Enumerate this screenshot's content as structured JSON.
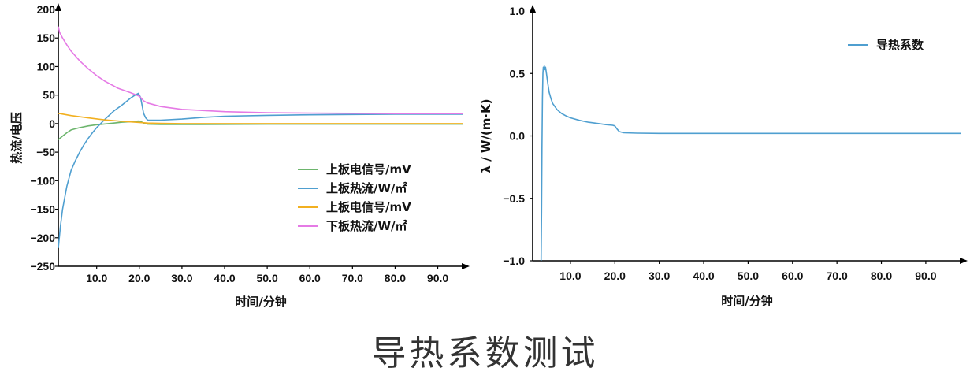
{
  "caption": "导热系数测试",
  "chart_data": [
    {
      "type": "line",
      "xlabel": "时间/分钟",
      "ylabel": "热流/电压",
      "xlim": [
        1.0,
        96.0
      ],
      "ylim": [
        -250,
        200
      ],
      "xticks": [
        10,
        20,
        30,
        40,
        50,
        60,
        70,
        80,
        90
      ],
      "xtick_labels": [
        "10.0",
        "20.0",
        "30.0",
        "40.0",
        "50.0",
        "60.0",
        "70.0",
        "80.0",
        "90.0"
      ],
      "yticks": [
        200,
        150,
        100,
        50,
        0,
        -50,
        -100,
        -150,
        -200,
        -250
      ],
      "ytick_labels": [
        "200",
        "150",
        "100",
        "50",
        "0",
        "−50",
        "−100",
        "−150",
        "−200",
        "−250"
      ],
      "legend_position": "lower-right",
      "series": [
        {
          "name": "上板电信号/mV",
          "color": "#6db56d",
          "x": [
            1,
            2,
            3,
            4,
            5,
            6,
            8,
            10,
            12,
            14,
            16,
            18,
            20,
            20.5,
            21,
            22,
            25,
            30,
            40,
            50,
            60,
            70,
            80,
            90,
            96
          ],
          "y": [
            -28,
            -22,
            -16,
            -11,
            -9,
            -7,
            -4,
            -2,
            -0.5,
            1,
            2.5,
            3.5,
            4.5,
            3,
            1,
            -1,
            -1.5,
            -1.5,
            -1.2,
            -1,
            -1,
            -1,
            -1,
            -1,
            -1
          ]
        },
        {
          "name": "上板热流/W/㎡",
          "color": "#4f9fd0",
          "x": [
            1,
            1.5,
            2,
            3,
            4,
            5,
            6,
            7,
            8,
            9,
            10,
            12,
            14,
            16,
            18,
            19,
            19.8,
            20.3,
            20.7,
            21,
            21.5,
            22,
            25,
            30,
            35,
            40,
            50,
            60,
            70,
            80,
            90,
            96
          ],
          "y": [
            -218,
            -180,
            -150,
            -110,
            -82,
            -65,
            -50,
            -37,
            -26,
            -16,
            -7,
            8,
            22,
            33,
            45,
            50,
            53,
            46,
            30,
            18,
            10,
            6,
            6,
            8,
            11,
            13,
            14.5,
            15.5,
            16,
            16.5,
            16.5,
            16.5
          ]
        },
        {
          "name": "上板电信号/mV",
          "color": "#f2b020",
          "x": [
            1,
            4,
            8,
            12,
            16,
            20,
            22,
            25,
            30,
            40,
            50,
            60,
            70,
            80,
            90,
            96
          ],
          "y": [
            18,
            14,
            10,
            6.5,
            4,
            2,
            1,
            0.5,
            0,
            0,
            0,
            0,
            0,
            0,
            0,
            0
          ]
        },
        {
          "name": "下板热流/W/㎡",
          "color": "#e57ae5",
          "x": [
            1,
            1.3,
            2,
            3,
            4,
            6,
            8,
            10,
            12,
            15,
            18,
            20,
            21,
            22,
            25,
            30,
            40,
            50,
            60,
            70,
            80,
            90,
            96
          ],
          "y": [
            170,
            160,
            150,
            138,
            127,
            110,
            96,
            84,
            74,
            62,
            54,
            48,
            40,
            36,
            30,
            25,
            21,
            19,
            18.5,
            18,
            17.5,
            17.5,
            17.5
          ]
        }
      ]
    },
    {
      "type": "line",
      "xlabel": "时间/分钟",
      "ylabel": "λ / W/(m·K)",
      "xlim": [
        1.5,
        98.0
      ],
      "ylim": [
        -1.0,
        1.0
      ],
      "xticks": [
        10,
        20,
        30,
        40,
        50,
        60,
        70,
        80,
        90
      ],
      "xtick_labels": [
        "10.0",
        "20.0",
        "30.0",
        "40.0",
        "50.0",
        "60.0",
        "70.0",
        "80.0",
        "90.0"
      ],
      "yticks": [
        1.0,
        0.5,
        0.0,
        -0.5,
        -1.0
      ],
      "ytick_labels": [
        "1.0",
        "0.5",
        "0.0",
        "−0.5",
        "−1.0"
      ],
      "legend_position": "top-right",
      "series": [
        {
          "name": "导热系数",
          "color": "#4f9fd0",
          "x": [
            3.4,
            3.5,
            3.6,
            3.7,
            3.8,
            3.9,
            4.0,
            4.1,
            4.2,
            4.4,
            4.6,
            4.9,
            5.2,
            5.6,
            6,
            7,
            8,
            9,
            10,
            12,
            14,
            16,
            18,
            19.5,
            20,
            20.5,
            21,
            22,
            25,
            30,
            40,
            50,
            60,
            70,
            80,
            90,
            98
          ],
          "y": [
            -1.0,
            -0.6,
            -0.1,
            0.3,
            0.5,
            0.55,
            0.52,
            0.56,
            0.53,
            0.55,
            0.5,
            0.42,
            0.35,
            0.3,
            0.26,
            0.21,
            0.18,
            0.16,
            0.145,
            0.125,
            0.11,
            0.1,
            0.09,
            0.085,
            0.08,
            0.055,
            0.035,
            0.025,
            0.022,
            0.02,
            0.02,
            0.02,
            0.02,
            0.02,
            0.02,
            0.02,
            0.02
          ]
        }
      ]
    }
  ]
}
